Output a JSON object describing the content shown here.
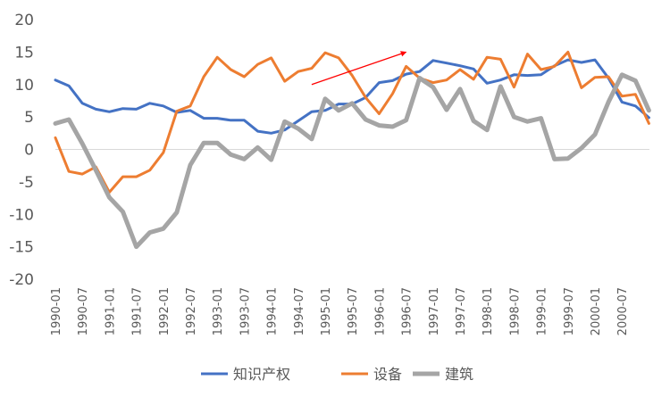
{
  "chart_data": {
    "type": "line",
    "title": "",
    "xlabel": "",
    "ylabel": "",
    "ylim": [
      -20,
      20
    ],
    "yticks": [
      20,
      15,
      10,
      5,
      0,
      -5,
      -10,
      -15,
      -20
    ],
    "x_tick_labels": [
      "1990-01",
      "1990-07",
      "1991-01",
      "1991-07",
      "1992-01",
      "1992-07",
      "1993-01",
      "1993-07",
      "1994-01",
      "1994-07",
      "1995-01",
      "1995-07",
      "1996-01",
      "1996-07",
      "1997-01",
      "1997-07",
      "1998-01",
      "1998-07",
      "1999-01",
      "1999-07",
      "2000-01",
      "2000-07"
    ],
    "x": [
      "1990-01",
      "1990-04",
      "1990-07",
      "1990-10",
      "1991-01",
      "1991-04",
      "1991-07",
      "1991-10",
      "1992-01",
      "1992-04",
      "1992-07",
      "1992-10",
      "1993-01",
      "1993-04",
      "1993-07",
      "1993-10",
      "1994-01",
      "1994-04",
      "1994-07",
      "1994-10",
      "1995-01",
      "1995-04",
      "1995-07",
      "1995-10",
      "1996-01",
      "1996-04",
      "1996-07",
      "1996-10",
      "1997-01",
      "1997-04",
      "1997-07",
      "1997-10",
      "1998-01",
      "1998-04",
      "1998-07",
      "1998-10",
      "1999-01",
      "1999-04",
      "1999-07",
      "1999-10",
      "2000-01",
      "2000-04",
      "2000-07",
      "2000-10",
      "2001-01"
    ],
    "series": [
      {
        "name": "知识产权",
        "color": "#4472C4",
        "width": 3,
        "values": [
          10.7,
          9.8,
          7.1,
          6.2,
          5.8,
          6.3,
          6.2,
          7.1,
          6.7,
          5.7,
          6.0,
          4.8,
          4.8,
          4.5,
          4.5,
          2.8,
          2.5,
          3.0,
          4.4,
          5.8,
          6.0,
          7.0,
          7.0,
          8.0,
          10.3,
          10.6,
          11.6,
          12.0,
          13.7,
          13.3,
          12.9,
          12.4,
          10.2,
          10.7,
          11.5,
          11.4,
          11.5,
          12.9,
          13.8,
          13.4,
          13.8,
          11.0,
          7.3,
          6.7,
          4.9
        ]
      },
      {
        "name": "设备",
        "color": "#ED7D31",
        "width": 3,
        "values": [
          1.8,
          -3.4,
          -3.8,
          -2.7,
          -6.6,
          -4.2,
          -4.2,
          -3.2,
          -0.5,
          5.9,
          6.7,
          11.2,
          14.2,
          12.3,
          11.2,
          13.1,
          14.1,
          10.5,
          12.0,
          12.5,
          14.9,
          14.1,
          11.4,
          8.0,
          5.5,
          8.6,
          12.8,
          11.0,
          10.3,
          10.7,
          12.3,
          10.8,
          14.2,
          13.9,
          9.6,
          14.7,
          12.3,
          12.8,
          15.0,
          9.5,
          11.1,
          11.2,
          8.2,
          8.5,
          4.0
        ]
      },
      {
        "name": "建筑",
        "color": "#A5A5A5",
        "width": 5,
        "values": [
          4.0,
          4.6,
          0.9,
          -3.2,
          -7.4,
          -9.6,
          -15.0,
          -12.8,
          -12.2,
          -9.7,
          -2.4,
          1.0,
          1.0,
          -0.8,
          -1.5,
          0.3,
          -1.6,
          4.3,
          3.2,
          1.6,
          7.8,
          6.0,
          7.1,
          4.6,
          3.7,
          3.5,
          4.5,
          11.0,
          9.6,
          6.1,
          9.3,
          4.4,
          3.0,
          9.7,
          5.0,
          4.3,
          4.8,
          -1.5,
          -1.4,
          0.2,
          2.3,
          7.3,
          11.5,
          10.6,
          6.0
        ]
      }
    ],
    "annotation": {
      "type": "arrow",
      "color": "#FF0000",
      "from": [
        "1994-10",
        10.0
      ],
      "to": [
        "1996-07",
        15.0
      ]
    },
    "legend_position": "bottom",
    "grid": false
  }
}
